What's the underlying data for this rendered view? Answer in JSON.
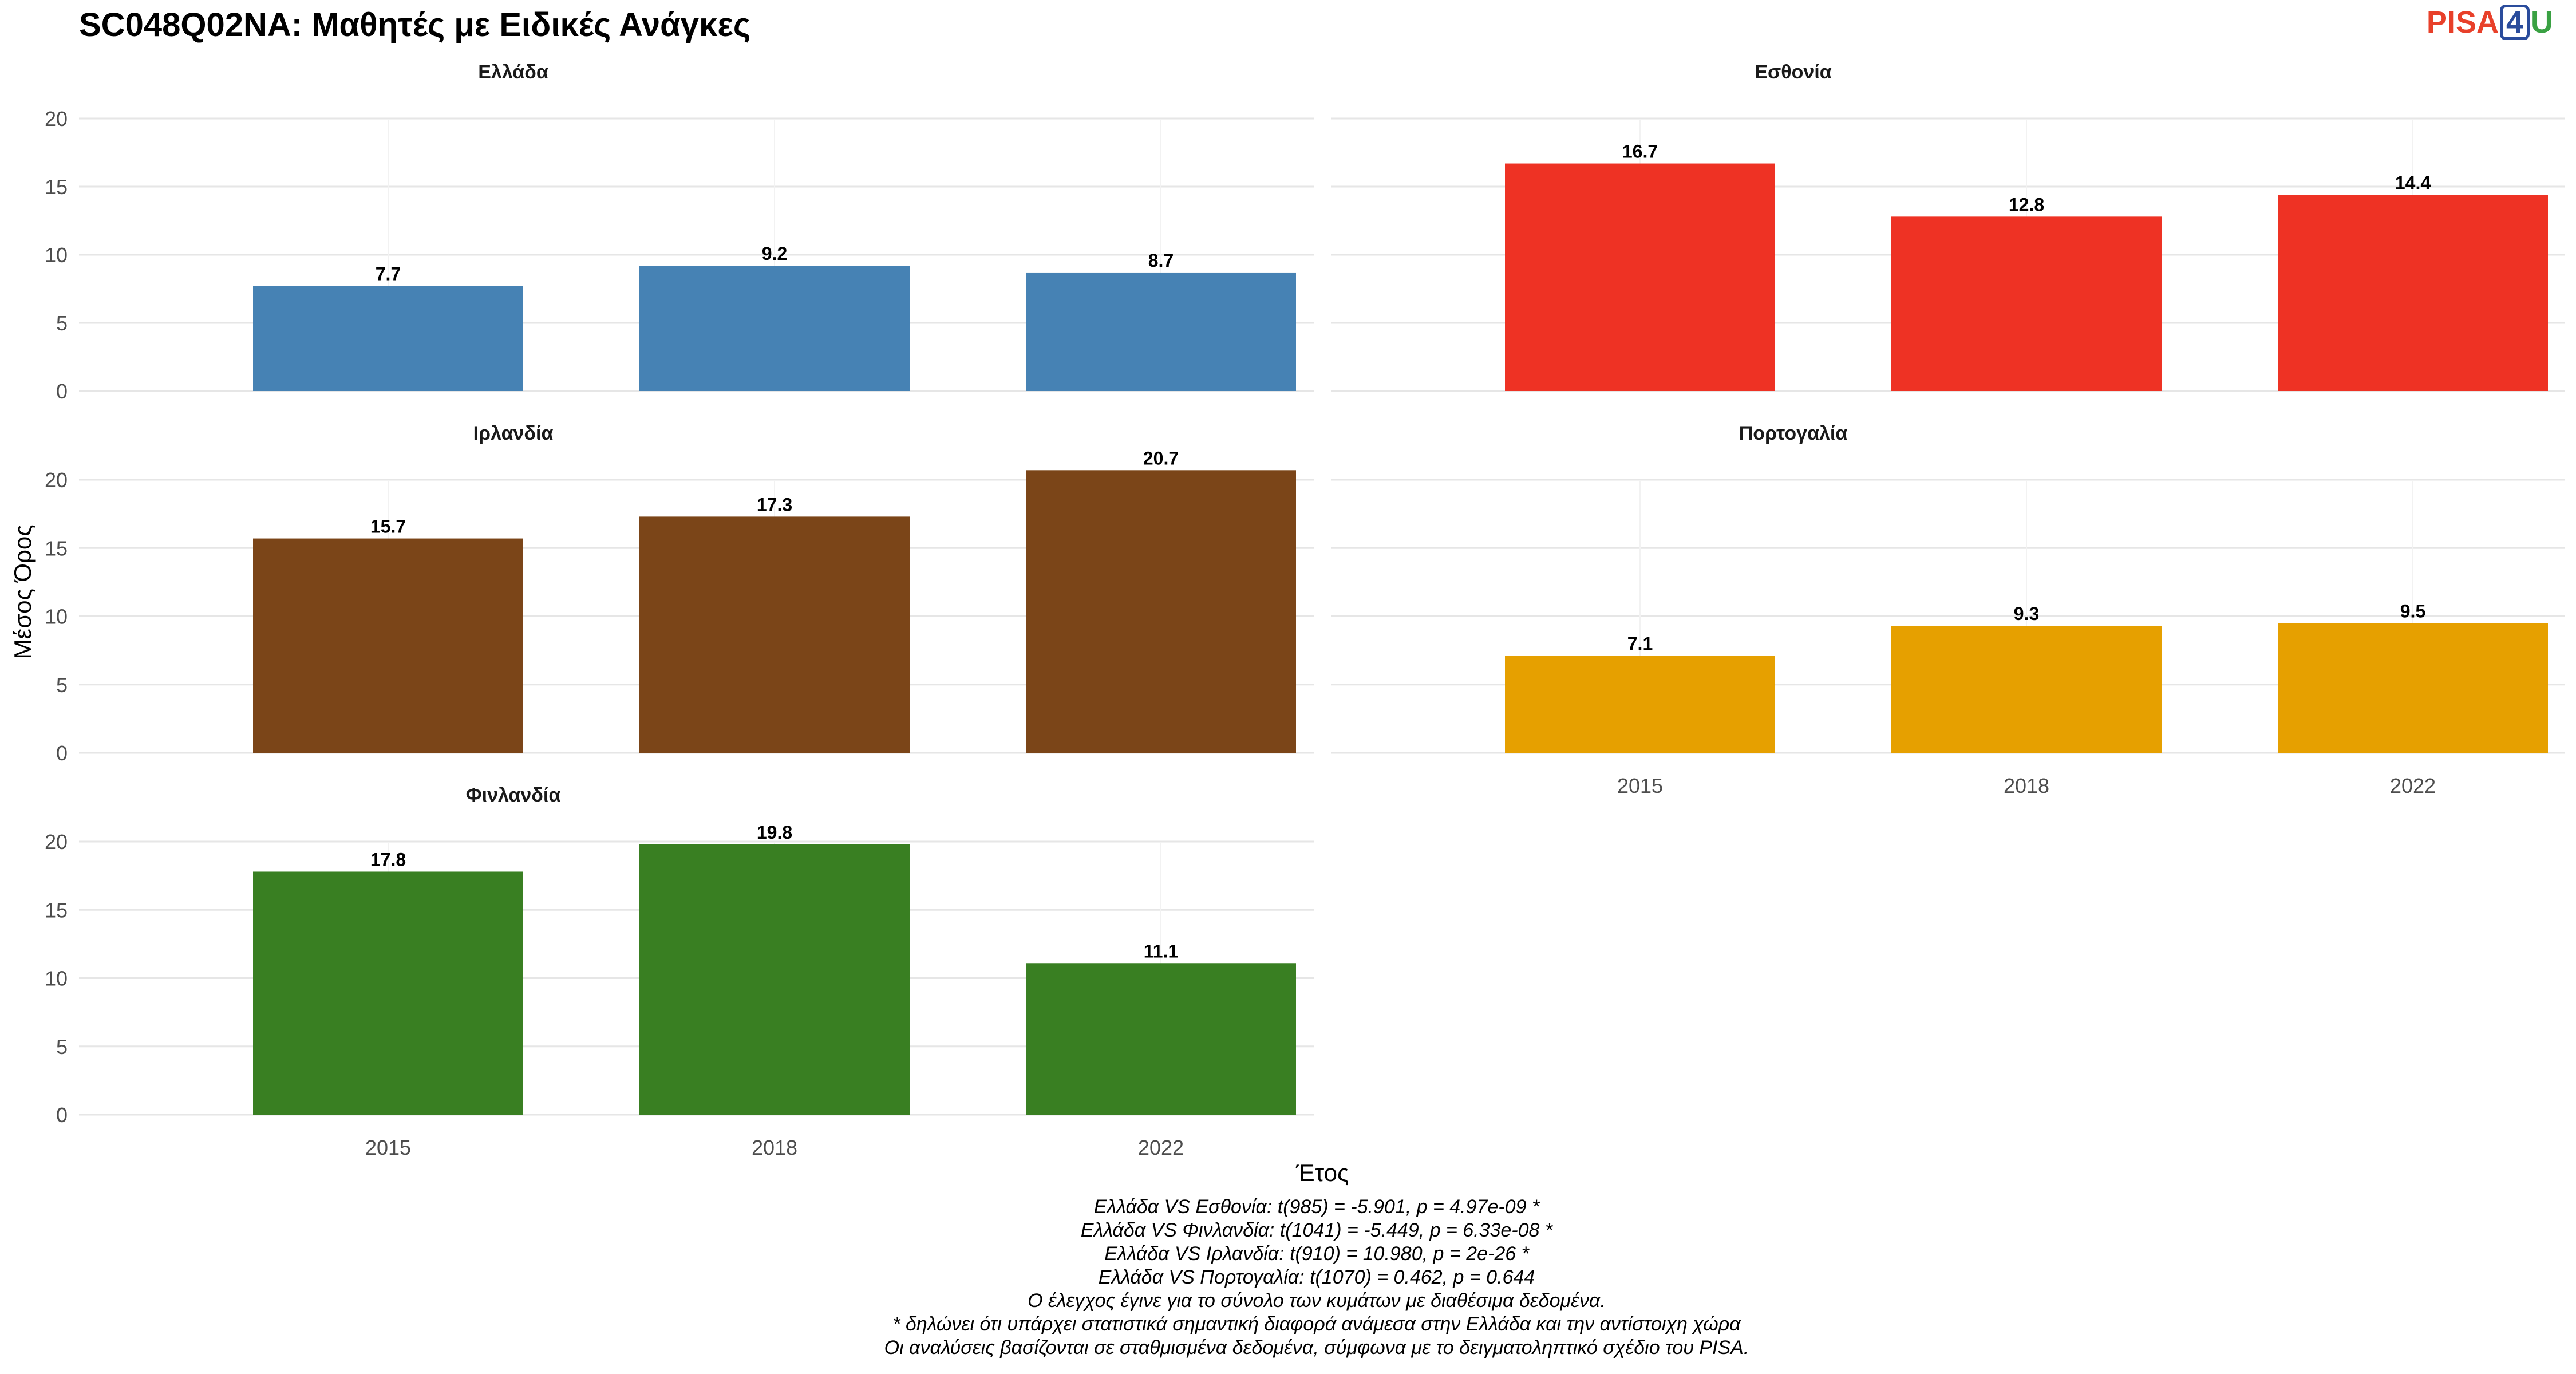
{
  "title": "SC048Q02NA: Μαθητές με Ειδικές Ανάγκες",
  "logo": {
    "part1": "PISA",
    "part2": "4",
    "part3": "U"
  },
  "chart_data": {
    "type": "bar",
    "xlabel": "Έτος",
    "ylabel": "Μέσος Όρος",
    "ylim": [
      0,
      20
    ],
    "yticks": [
      0,
      5,
      10,
      15,
      20
    ],
    "categories": [
      "2015",
      "2018",
      "2022"
    ],
    "grid": true,
    "legend": "none",
    "panels": [
      {
        "name": "Ελλάδα",
        "color": "#4682b4",
        "values": [
          7.7,
          9.2,
          8.7
        ],
        "labels": [
          "7.7",
          "9.2",
          "8.7"
        ]
      },
      {
        "name": "Εσθονία",
        "color": "#ee3224",
        "values": [
          16.7,
          12.8,
          14.4
        ],
        "labels": [
          "16.7",
          "12.8",
          "14.4"
        ]
      },
      {
        "name": "Ιρλανδία",
        "color": "#7b4518",
        "values": [
          15.7,
          17.3,
          20.7
        ],
        "labels": [
          "15.7",
          "17.3",
          "20.7"
        ]
      },
      {
        "name": "Πορτογαλία",
        "color": "#e6a000",
        "values": [
          7.1,
          9.3,
          9.5
        ],
        "labels": [
          "7.1",
          "9.3",
          "9.5"
        ]
      },
      {
        "name": "Φινλανδία",
        "color": "#397f22",
        "values": [
          17.8,
          19.8,
          11.1
        ],
        "labels": [
          "17.8",
          "19.8",
          "11.1"
        ]
      }
    ]
  },
  "caption": [
    "Ελλάδα VS Εσθονία: t(985) = -5.901, p = 4.97e-09 *",
    "Ελλάδα VS Φινλανδία: t(1041) = -5.449, p = 6.33e-08 *",
    "Ελλάδα VS Ιρλανδία: t(910) = 10.980, p = 2e-26 *",
    "Ελλάδα VS Πορτογαλία: t(1070) = 0.462, p = 0.644",
    "Ο έλεγχος έγινε για το σύνολο των κυμάτων με διαθέσιμα δεδομένα.",
    "* δηλώνει ότι υπάρχει στατιστικά σημαντική διαφορά ανάμεσα στην Ελλάδα και την αντίστοιχη χώρα",
    "Οι αναλύσεις βασίζονται σε σταθμισμένα δεδομένα, σύμφωνα με το δειγματοληπτικό σχέδιο του PISA."
  ]
}
